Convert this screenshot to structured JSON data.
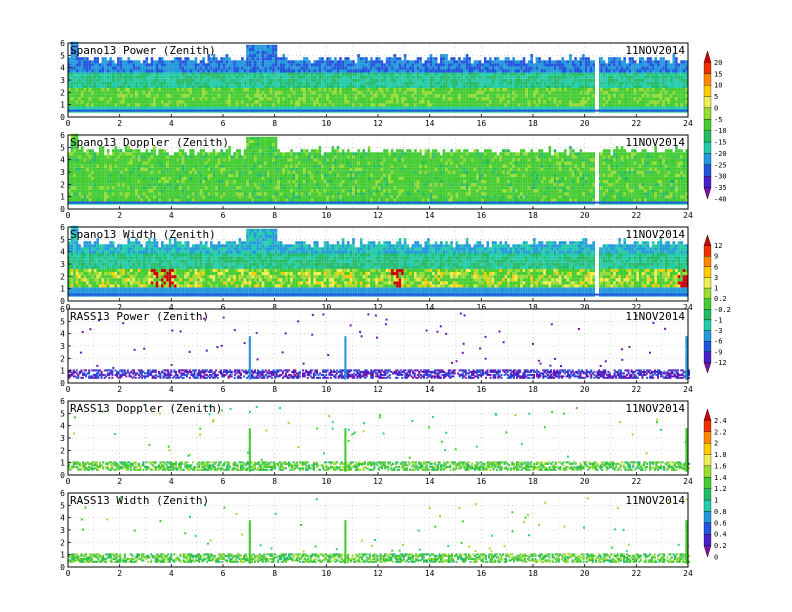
{
  "chart_data": [
    {
      "type": "heatmap",
      "title": "Spano13 Power (Zenith)",
      "date": "11NOV2014",
      "xlim": [
        0,
        24
      ],
      "ylim": [
        0,
        6
      ],
      "x_ticks": [
        "0",
        "2",
        "4",
        "6",
        "8",
        "10",
        "12",
        "14",
        "16",
        "18",
        "20",
        "22",
        "24"
      ],
      "y_ticks": [
        "0",
        "1",
        "2",
        "3",
        "4",
        "5",
        "6"
      ],
      "grid": true,
      "coverage_top_km": 4.6,
      "colorbar": {
        "labels": [
          "20",
          "15",
          "10",
          "5",
          "0",
          "-5",
          "-10",
          "-15",
          "-20",
          "-25",
          "-30",
          "-35",
          "-40"
        ],
        "colors": [
          "#cc0000",
          "#ee3300",
          "#ff8800",
          "#ffcc00",
          "#eeee55",
          "#99dd33",
          "#44cc33",
          "#22bb66",
          "#22ccaa",
          "#2299dd",
          "#2255dd",
          "#4422cc",
          "#7711aa"
        ]
      }
    },
    {
      "type": "heatmap",
      "title": "Spano13 Doppler (Zenith)",
      "date": "11NOV2014",
      "xlim": [
        0,
        24
      ],
      "ylim": [
        0,
        6
      ],
      "x_ticks": [
        "0",
        "2",
        "4",
        "6",
        "8",
        "10",
        "12",
        "14",
        "16",
        "18",
        "20",
        "22",
        "24"
      ],
      "y_ticks": [
        "0",
        "1",
        "2",
        "3",
        "4",
        "5",
        "6"
      ],
      "grid": true,
      "coverage_top_km": 4.6
    },
    {
      "type": "heatmap",
      "title": "Spano13 Width (Zenith)",
      "date": "11NOV2014",
      "xlim": [
        0,
        24
      ],
      "ylim": [
        0,
        6
      ],
      "x_ticks": [
        "0",
        "2",
        "4",
        "6",
        "8",
        "10",
        "12",
        "14",
        "16",
        "18",
        "20",
        "22",
        "24"
      ],
      "y_ticks": [
        "0",
        "1",
        "2",
        "3",
        "4",
        "5",
        "6"
      ],
      "grid": true,
      "coverage_top_km": 4.6,
      "colorbar": {
        "labels": [
          "12",
          "9",
          "6",
          "3",
          "1",
          "0.2",
          "-0.2",
          "-1",
          "-3",
          "-6",
          "-9",
          "-12"
        ],
        "colors": [
          "#cc0000",
          "#ee3300",
          "#ff8800",
          "#ffcc00",
          "#eeee55",
          "#99dd33",
          "#44cc33",
          "#22bb66",
          "#22ccaa",
          "#2299dd",
          "#2255dd",
          "#4422cc",
          "#7711aa"
        ]
      }
    },
    {
      "type": "scatter",
      "title": "RASS13 Power (Zenith)",
      "date": "11NOV2014",
      "xlim": [
        0,
        24
      ],
      "ylim": [
        0,
        6
      ],
      "x_ticks": [
        "0",
        "2",
        "4",
        "6",
        "8",
        "10",
        "12",
        "14",
        "16",
        "18",
        "20",
        "22",
        "24"
      ],
      "y_ticks": [
        "0",
        "1",
        "2",
        "3",
        "4",
        "5",
        "6"
      ],
      "grid": true
    },
    {
      "type": "scatter",
      "title": "RASS13 Doppler (Zenith)",
      "date": "11NOV2014",
      "xlim": [
        0,
        24
      ],
      "ylim": [
        0,
        6
      ],
      "x_ticks": [
        "0",
        "2",
        "4",
        "6",
        "8",
        "10",
        "12",
        "14",
        "16",
        "18",
        "20",
        "22",
        "24"
      ],
      "y_ticks": [
        "0",
        "1",
        "2",
        "3",
        "4",
        "5",
        "6"
      ],
      "grid": true,
      "colorbar": {
        "labels": [
          "2.4",
          "2.2",
          "2",
          "1.8",
          "1.6",
          "1.4",
          "1.2",
          "1",
          "0.8",
          "0.6",
          "0.4",
          "0.2",
          "0"
        ],
        "colors": [
          "#cc0000",
          "#ee3300",
          "#ff8800",
          "#ffcc00",
          "#eeee55",
          "#99dd33",
          "#44cc33",
          "#22bb66",
          "#22ccaa",
          "#2299dd",
          "#2255dd",
          "#4422cc",
          "#7711aa"
        ]
      }
    },
    {
      "type": "scatter",
      "title": "RASS13 Width (Zenith)",
      "date": "11NOV2014",
      "xlim": [
        0,
        24
      ],
      "ylim": [
        0,
        6
      ],
      "x_ticks": [
        "0",
        "2",
        "4",
        "6",
        "8",
        "10",
        "12",
        "14",
        "16",
        "18",
        "20",
        "22",
        "24"
      ],
      "y_ticks": [
        "0",
        "1",
        "2",
        "3",
        "4",
        "5",
        "6"
      ],
      "grid": true
    }
  ]
}
